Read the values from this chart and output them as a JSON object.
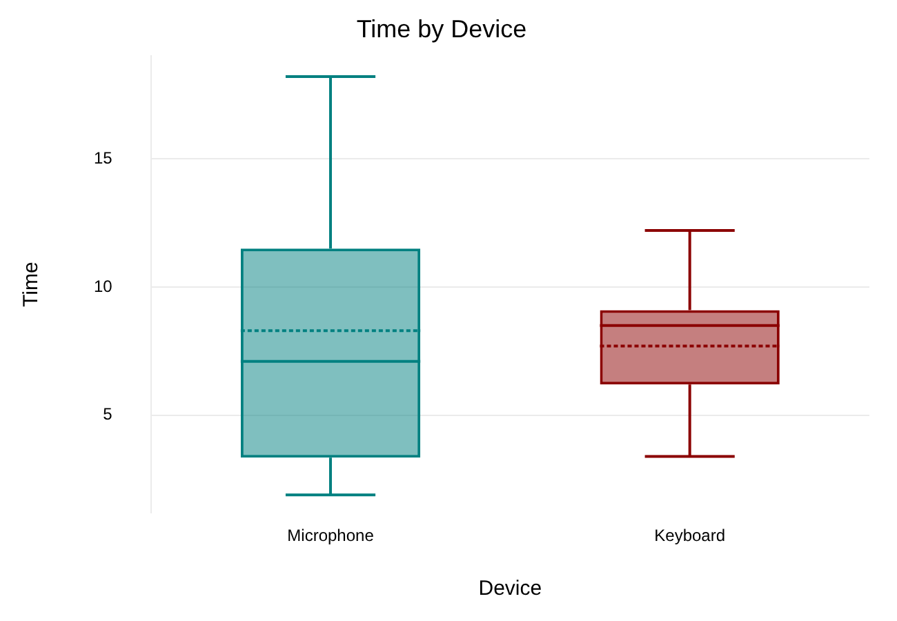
{
  "chart_data": {
    "type": "box",
    "title": "Time by Device",
    "xlabel": "Device",
    "ylabel": "Time",
    "categories": [
      "Microphone",
      "Keyboard"
    ],
    "colors": [
      "#008080",
      "#8b0000"
    ],
    "boxes": [
      {
        "low": 1.9,
        "q1": 3.35,
        "median": 7.1,
        "q3": 11.5,
        "high": 18.2,
        "mean": 8.3
      },
      {
        "low": 3.4,
        "q1": 6.2,
        "median": 8.5,
        "q3": 9.1,
        "high": 12.2,
        "mean": 7.7
      }
    ],
    "ylim": [
      1.2,
      19
    ],
    "yticks": [
      5,
      10,
      15
    ],
    "grid": "y"
  }
}
